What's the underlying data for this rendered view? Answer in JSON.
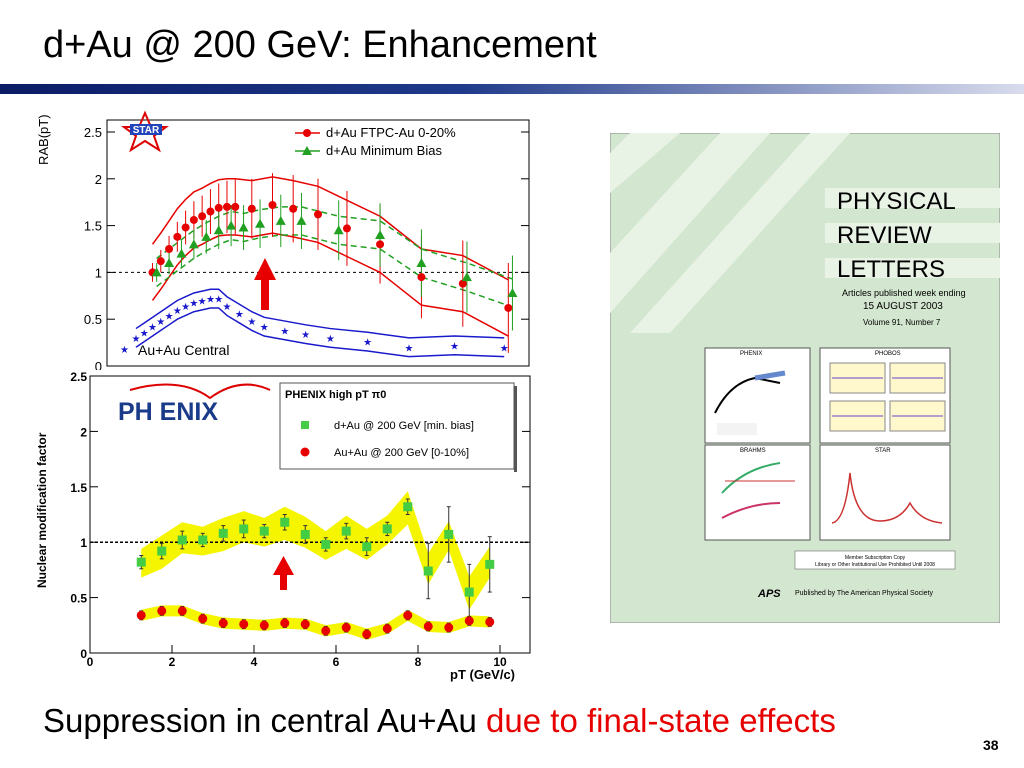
{
  "slide": {
    "title": "d+Au @ 200 GeV: Enhancement",
    "caption_black": "Suppression in central Au+Au ",
    "caption_red": "due to final-state effects",
    "page_number": "38"
  },
  "colors": {
    "title_rule": "#1f3a8a",
    "red": "#e60000",
    "green": "#22a022",
    "blue": "#1a1acc",
    "yellow_band": "#f5f500",
    "phenix_green_marker": "#44cc44",
    "cover_background": "#d3e6cf"
  },
  "chart_data": [
    {
      "type": "scatter",
      "experiment_logo": "STAR",
      "ylabel": "RAB(pT)",
      "xlim": [
        0,
        10.2
      ],
      "ylim": [
        0,
        2.5
      ],
      "yticks": [
        "0",
        "0.5",
        "1",
        "1.5",
        "2",
        "2.5"
      ],
      "reference_line": 1,
      "series": [
        {
          "name": "d+Au FTPC-Au 0-20%",
          "marker": "circle",
          "x": [
            1.1,
            1.3,
            1.5,
            1.7,
            1.9,
            2.1,
            2.3,
            2.5,
            2.7,
            2.9,
            3.1,
            3.5,
            4.0,
            4.5,
            5.1,
            5.8,
            6.6,
            7.6,
            8.6,
            9.7
          ],
          "y": [
            1.0,
            1.12,
            1.25,
            1.38,
            1.48,
            1.56,
            1.6,
            1.65,
            1.69,
            1.7,
            1.7,
            1.68,
            1.72,
            1.68,
            1.62,
            1.47,
            1.3,
            0.95,
            0.88,
            0.62
          ]
        },
        {
          "name": "d+Au Minimum Bias",
          "marker": "triangle",
          "x": [
            1.2,
            1.5,
            1.8,
            2.1,
            2.4,
            2.7,
            3.0,
            3.3,
            3.7,
            4.2,
            4.7,
            5.6,
            6.6,
            7.6,
            8.7,
            9.8
          ],
          "y": [
            1.0,
            1.1,
            1.2,
            1.3,
            1.38,
            1.45,
            1.5,
            1.48,
            1.52,
            1.55,
            1.55,
            1.45,
            1.4,
            1.1,
            0.95,
            0.78
          ]
        },
        {
          "name": "Au+Au Central",
          "marker": "star",
          "x": [
            0.7,
            0.9,
            1.1,
            1.3,
            1.5,
            1.7,
            1.9,
            2.1,
            2.3,
            2.5,
            2.7,
            2.9,
            3.2,
            3.5,
            3.8,
            4.3,
            4.8,
            5.4,
            6.3,
            7.3,
            8.4,
            9.6
          ],
          "y": [
            0.3,
            0.36,
            0.42,
            0.48,
            0.54,
            0.6,
            0.64,
            0.68,
            0.7,
            0.72,
            0.72,
            0.64,
            0.56,
            0.48,
            0.42,
            0.38,
            0.34,
            0.3,
            0.26,
            0.2,
            0.22,
            0.2
          ]
        }
      ]
    },
    {
      "type": "scatter",
      "experiment_logo": "PH ENIX",
      "ylabel": "Nuclear modification factor",
      "xlabel": "pT (GeV/c)",
      "legend_title": "PHENIX high pT π0",
      "xlim": [
        0,
        10
      ],
      "ylim": [
        0,
        2.5
      ],
      "xticks": [
        "0",
        "2",
        "4",
        "6",
        "8",
        "10"
      ],
      "yticks": [
        "0",
        "0.5",
        "1",
        "1.5",
        "2",
        "2.5"
      ],
      "reference_line": 1,
      "series": [
        {
          "name": "d+Au @ 200 GeV [min. bias]",
          "marker": "square",
          "x": [
            1.25,
            1.75,
            2.25,
            2.75,
            3.25,
            3.75,
            4.25,
            4.75,
            5.25,
            5.75,
            6.25,
            6.75,
            7.25,
            7.75,
            8.25,
            8.75,
            9.25,
            9.75
          ],
          "y": [
            0.82,
            0.92,
            1.02,
            1.02,
            1.08,
            1.12,
            1.1,
            1.18,
            1.07,
            0.98,
            1.1,
            0.96,
            1.12,
            1.32,
            0.74,
            1.07,
            0.55,
            0.8
          ]
        },
        {
          "name": "Au+Au @ 200 GeV [0-10%]",
          "marker": "circle",
          "x": [
            1.25,
            1.75,
            2.25,
            2.75,
            3.25,
            3.75,
            4.25,
            4.75,
            5.25,
            5.75,
            6.25,
            6.75,
            7.25,
            7.75,
            8.25,
            8.75,
            9.25,
            9.75
          ],
          "y": [
            0.34,
            0.38,
            0.38,
            0.31,
            0.27,
            0.26,
            0.25,
            0.27,
            0.26,
            0.2,
            0.23,
            0.17,
            0.22,
            0.34,
            0.24,
            0.23,
            0.29,
            0.28
          ]
        }
      ]
    }
  ],
  "journal_cover": {
    "title_line1": "PHYSICAL",
    "title_line2": "REVIEW",
    "title_line3": "LETTERS",
    "subtitle1": "Articles published week ending",
    "date": "15 AUGUST 2003",
    "volume": "Volume 91, Number 7",
    "inset_labels": [
      "PHENIX",
      "PHOBOS",
      "BRAHMS",
      "STAR"
    ],
    "member_copy_line1": "Member Subscription Copy",
    "member_copy_line2": "Library or Other Institutional Use Prohibited Until 2008",
    "publisher_logo": "APS",
    "publisher": "Published by The American Physical Society"
  }
}
